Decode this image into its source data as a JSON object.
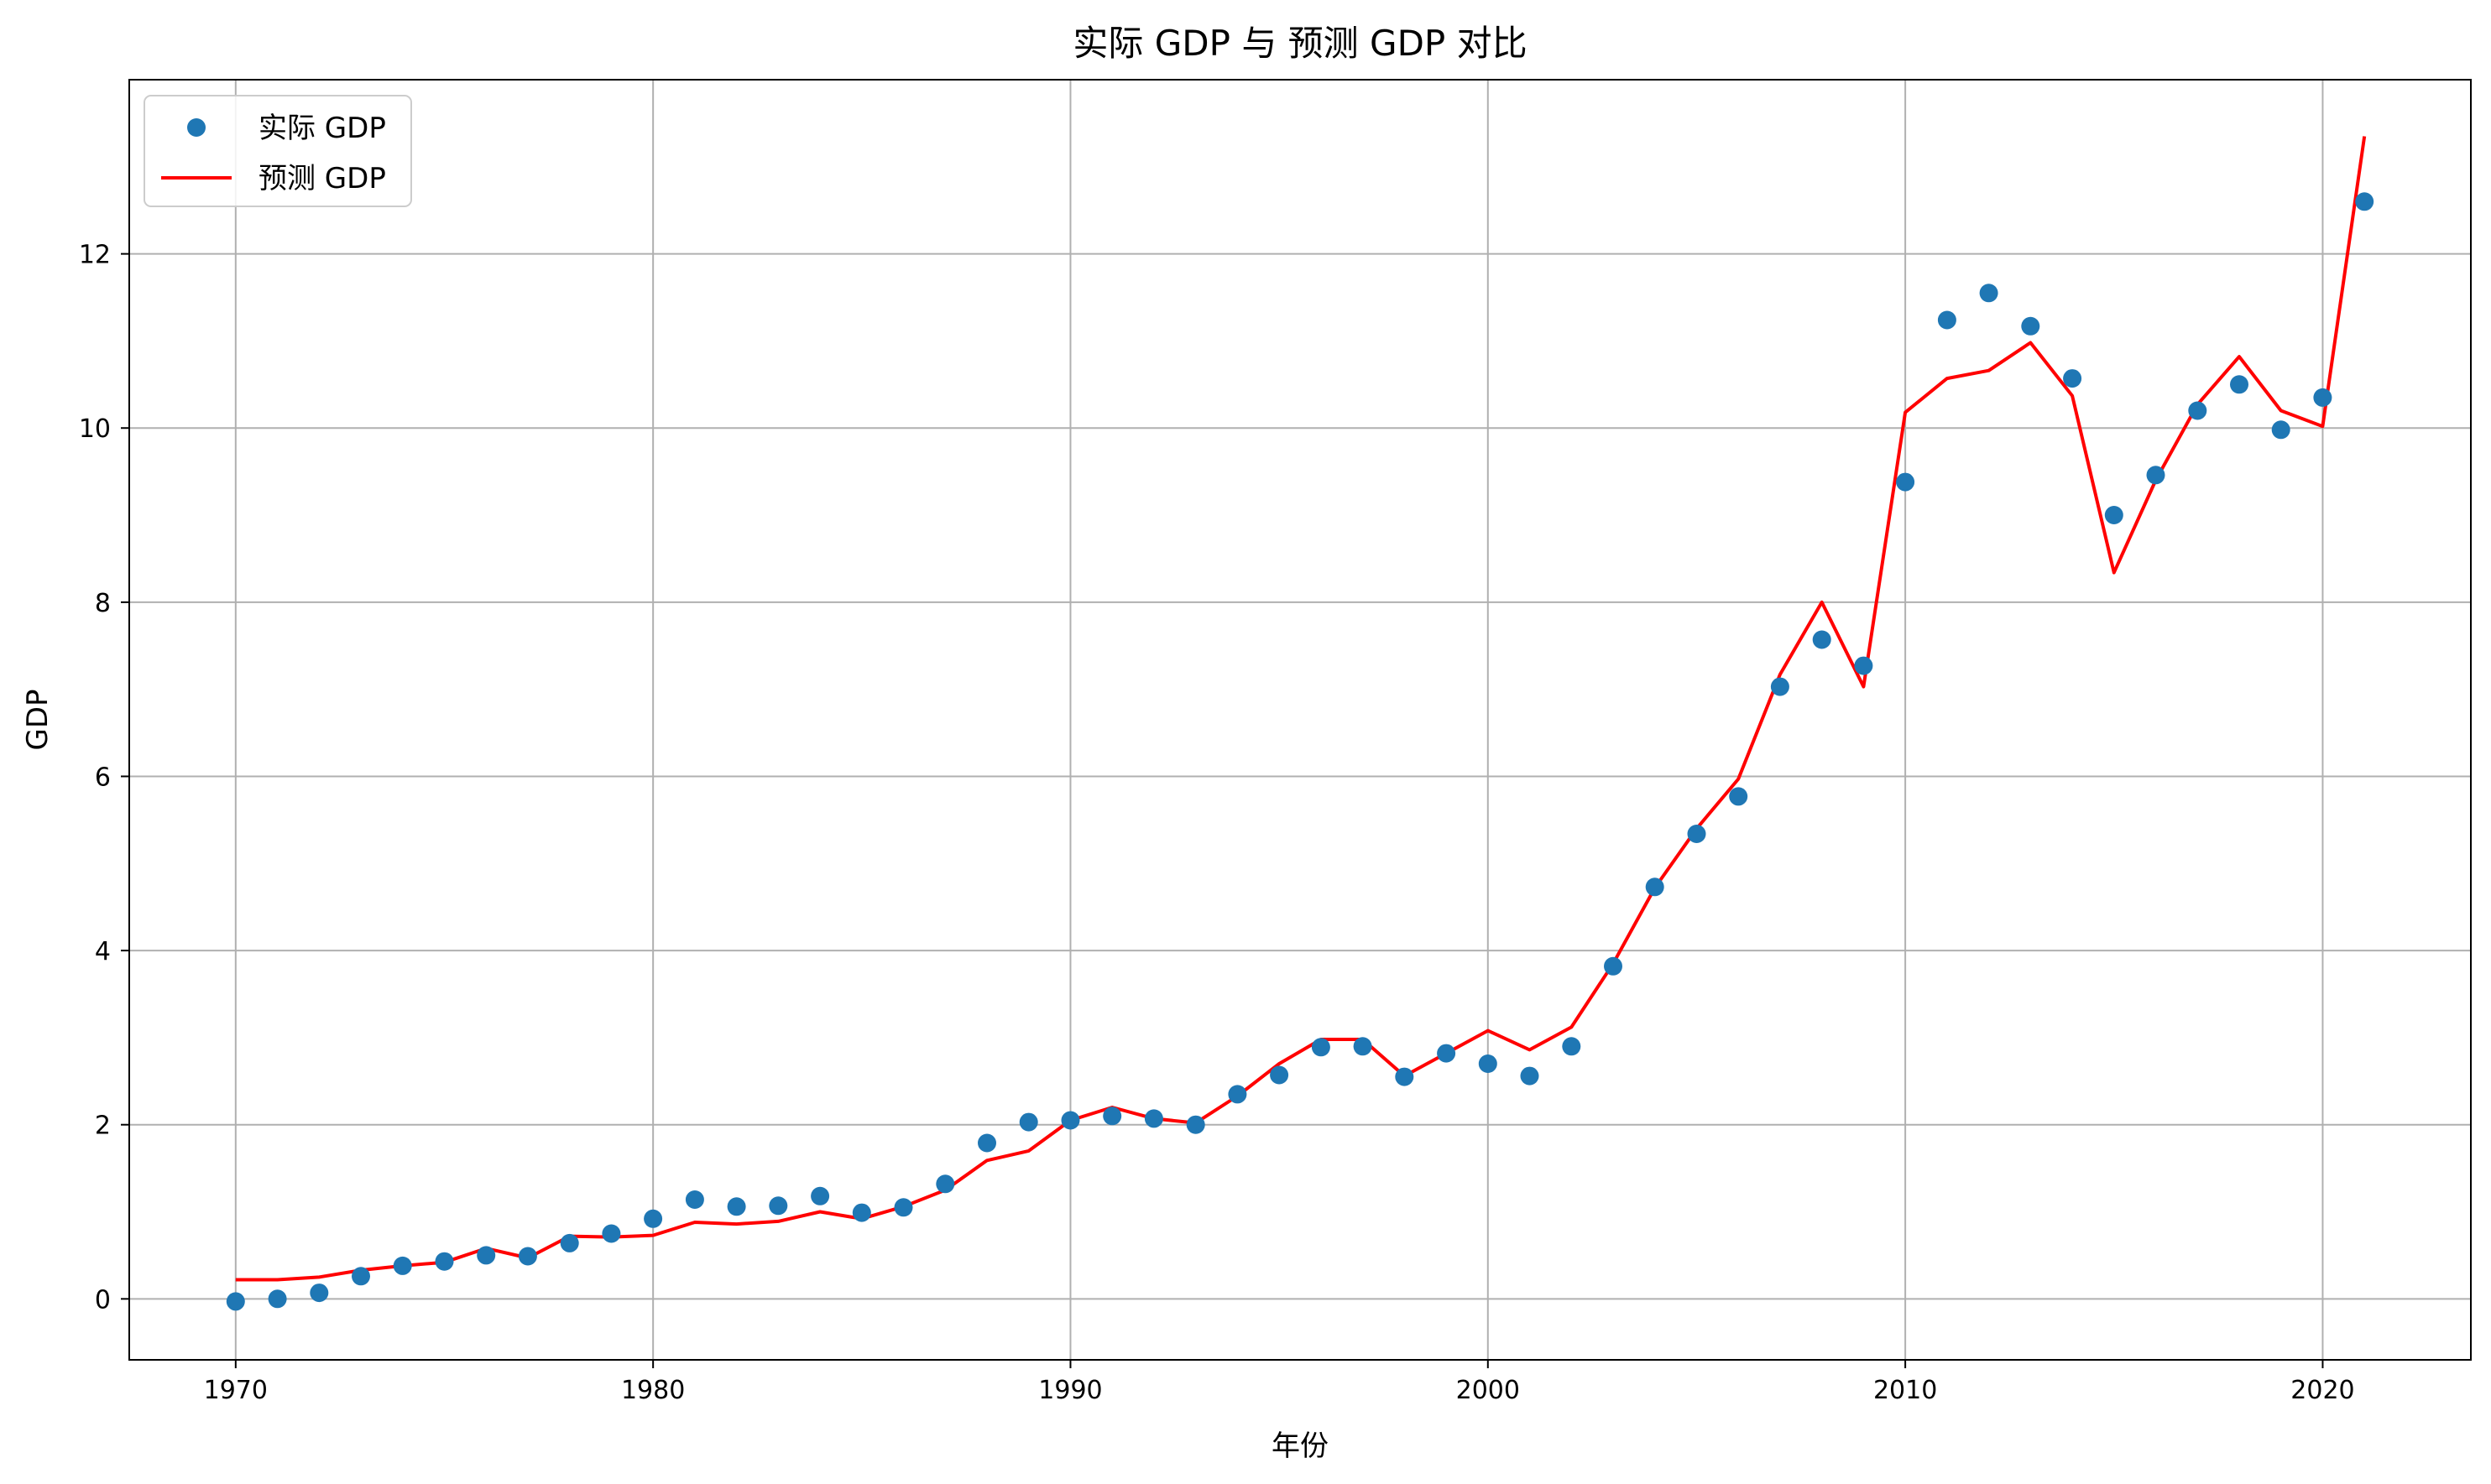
{
  "chart_data": {
    "type": "line",
    "title": "实际 GDP 与 预测 GDP 对比",
    "xlabel": "年份",
    "ylabel": "GDP",
    "xlim": [
      1967.45,
      2023.55
    ],
    "ylim": [
      -0.7,
      14.0
    ],
    "xticks": [
      1970,
      1980,
      1990,
      2000,
      2010,
      2020
    ],
    "yticks": [
      0,
      2,
      4,
      6,
      8,
      10,
      12
    ],
    "grid": true,
    "legend_position": "top-left",
    "x": [
      1970,
      1971,
      1972,
      1973,
      1974,
      1975,
      1976,
      1977,
      1978,
      1979,
      1980,
      1981,
      1982,
      1983,
      1984,
      1985,
      1986,
      1987,
      1988,
      1989,
      1990,
      1991,
      1992,
      1993,
      1994,
      1995,
      1996,
      1997,
      1998,
      1999,
      2000,
      2001,
      2002,
      2003,
      2004,
      2005,
      2006,
      2007,
      2008,
      2009,
      2010,
      2011,
      2012,
      2013,
      2014,
      2015,
      2016,
      2017,
      2018,
      2019,
      2020,
      2021
    ],
    "series": [
      {
        "name": "实际 GDP",
        "kind": "scatter",
        "color": "#1f77b4",
        "values": [
          -0.03,
          0.0,
          0.07,
          0.26,
          0.38,
          0.43,
          0.5,
          0.49,
          0.64,
          0.75,
          0.92,
          1.14,
          1.06,
          1.07,
          1.18,
          0.99,
          1.05,
          1.32,
          1.79,
          2.03,
          2.05,
          2.1,
          2.07,
          2.0,
          2.35,
          2.57,
          2.89,
          2.9,
          2.55,
          2.82,
          2.7,
          2.56,
          2.9,
          3.82,
          4.73,
          5.34,
          5.77,
          7.03,
          7.57,
          7.27,
          9.38,
          11.24,
          11.55,
          11.17,
          10.57,
          9.0,
          9.46,
          10.2,
          10.5,
          9.98,
          10.35,
          12.6
        ]
      },
      {
        "name": "预测 GDP",
        "kind": "line",
        "color": "#ff0000",
        "values": [
          0.22,
          0.22,
          0.25,
          0.33,
          0.38,
          0.42,
          0.58,
          0.47,
          0.72,
          0.71,
          0.73,
          0.88,
          0.86,
          0.89,
          1.0,
          0.92,
          1.06,
          1.25,
          1.59,
          1.7,
          2.05,
          2.2,
          2.07,
          2.02,
          2.33,
          2.7,
          2.98,
          2.98,
          2.56,
          2.82,
          3.08,
          2.86,
          3.12,
          3.85,
          4.72,
          5.4,
          5.97,
          7.17,
          8.0,
          7.03,
          10.18,
          10.57,
          10.66,
          10.98,
          10.37,
          8.34,
          9.4,
          10.27,
          10.82,
          10.2,
          10.02,
          13.35
        ]
      }
    ]
  }
}
